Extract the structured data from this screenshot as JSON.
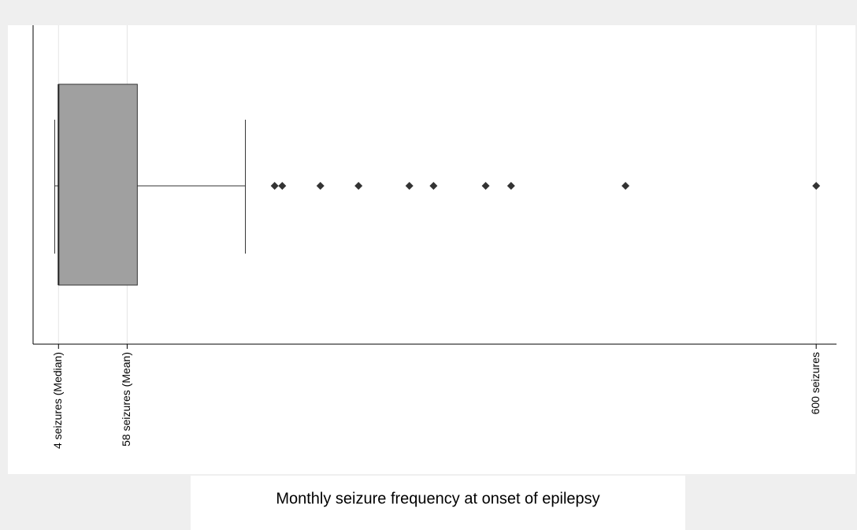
{
  "chart_data": {
    "type": "box",
    "xlabel": "Monthly seizure frequency at onset of epilepsy",
    "xlim": [
      -16,
      616
    ],
    "xticks": [
      {
        "value": 4,
        "label": "4 seizures (Median)"
      },
      {
        "value": 58,
        "label": "58 seizures (Mean)"
      },
      {
        "value": 600,
        "label": "600 seizures"
      }
    ],
    "box": {
      "min": 1,
      "q1": 4,
      "median": 4,
      "q3": 66,
      "max": 151
    },
    "outliers": [
      174,
      180,
      210,
      240,
      280,
      299,
      340,
      360,
      450,
      600
    ],
    "color": "#a0a0a0",
    "grid": true
  }
}
